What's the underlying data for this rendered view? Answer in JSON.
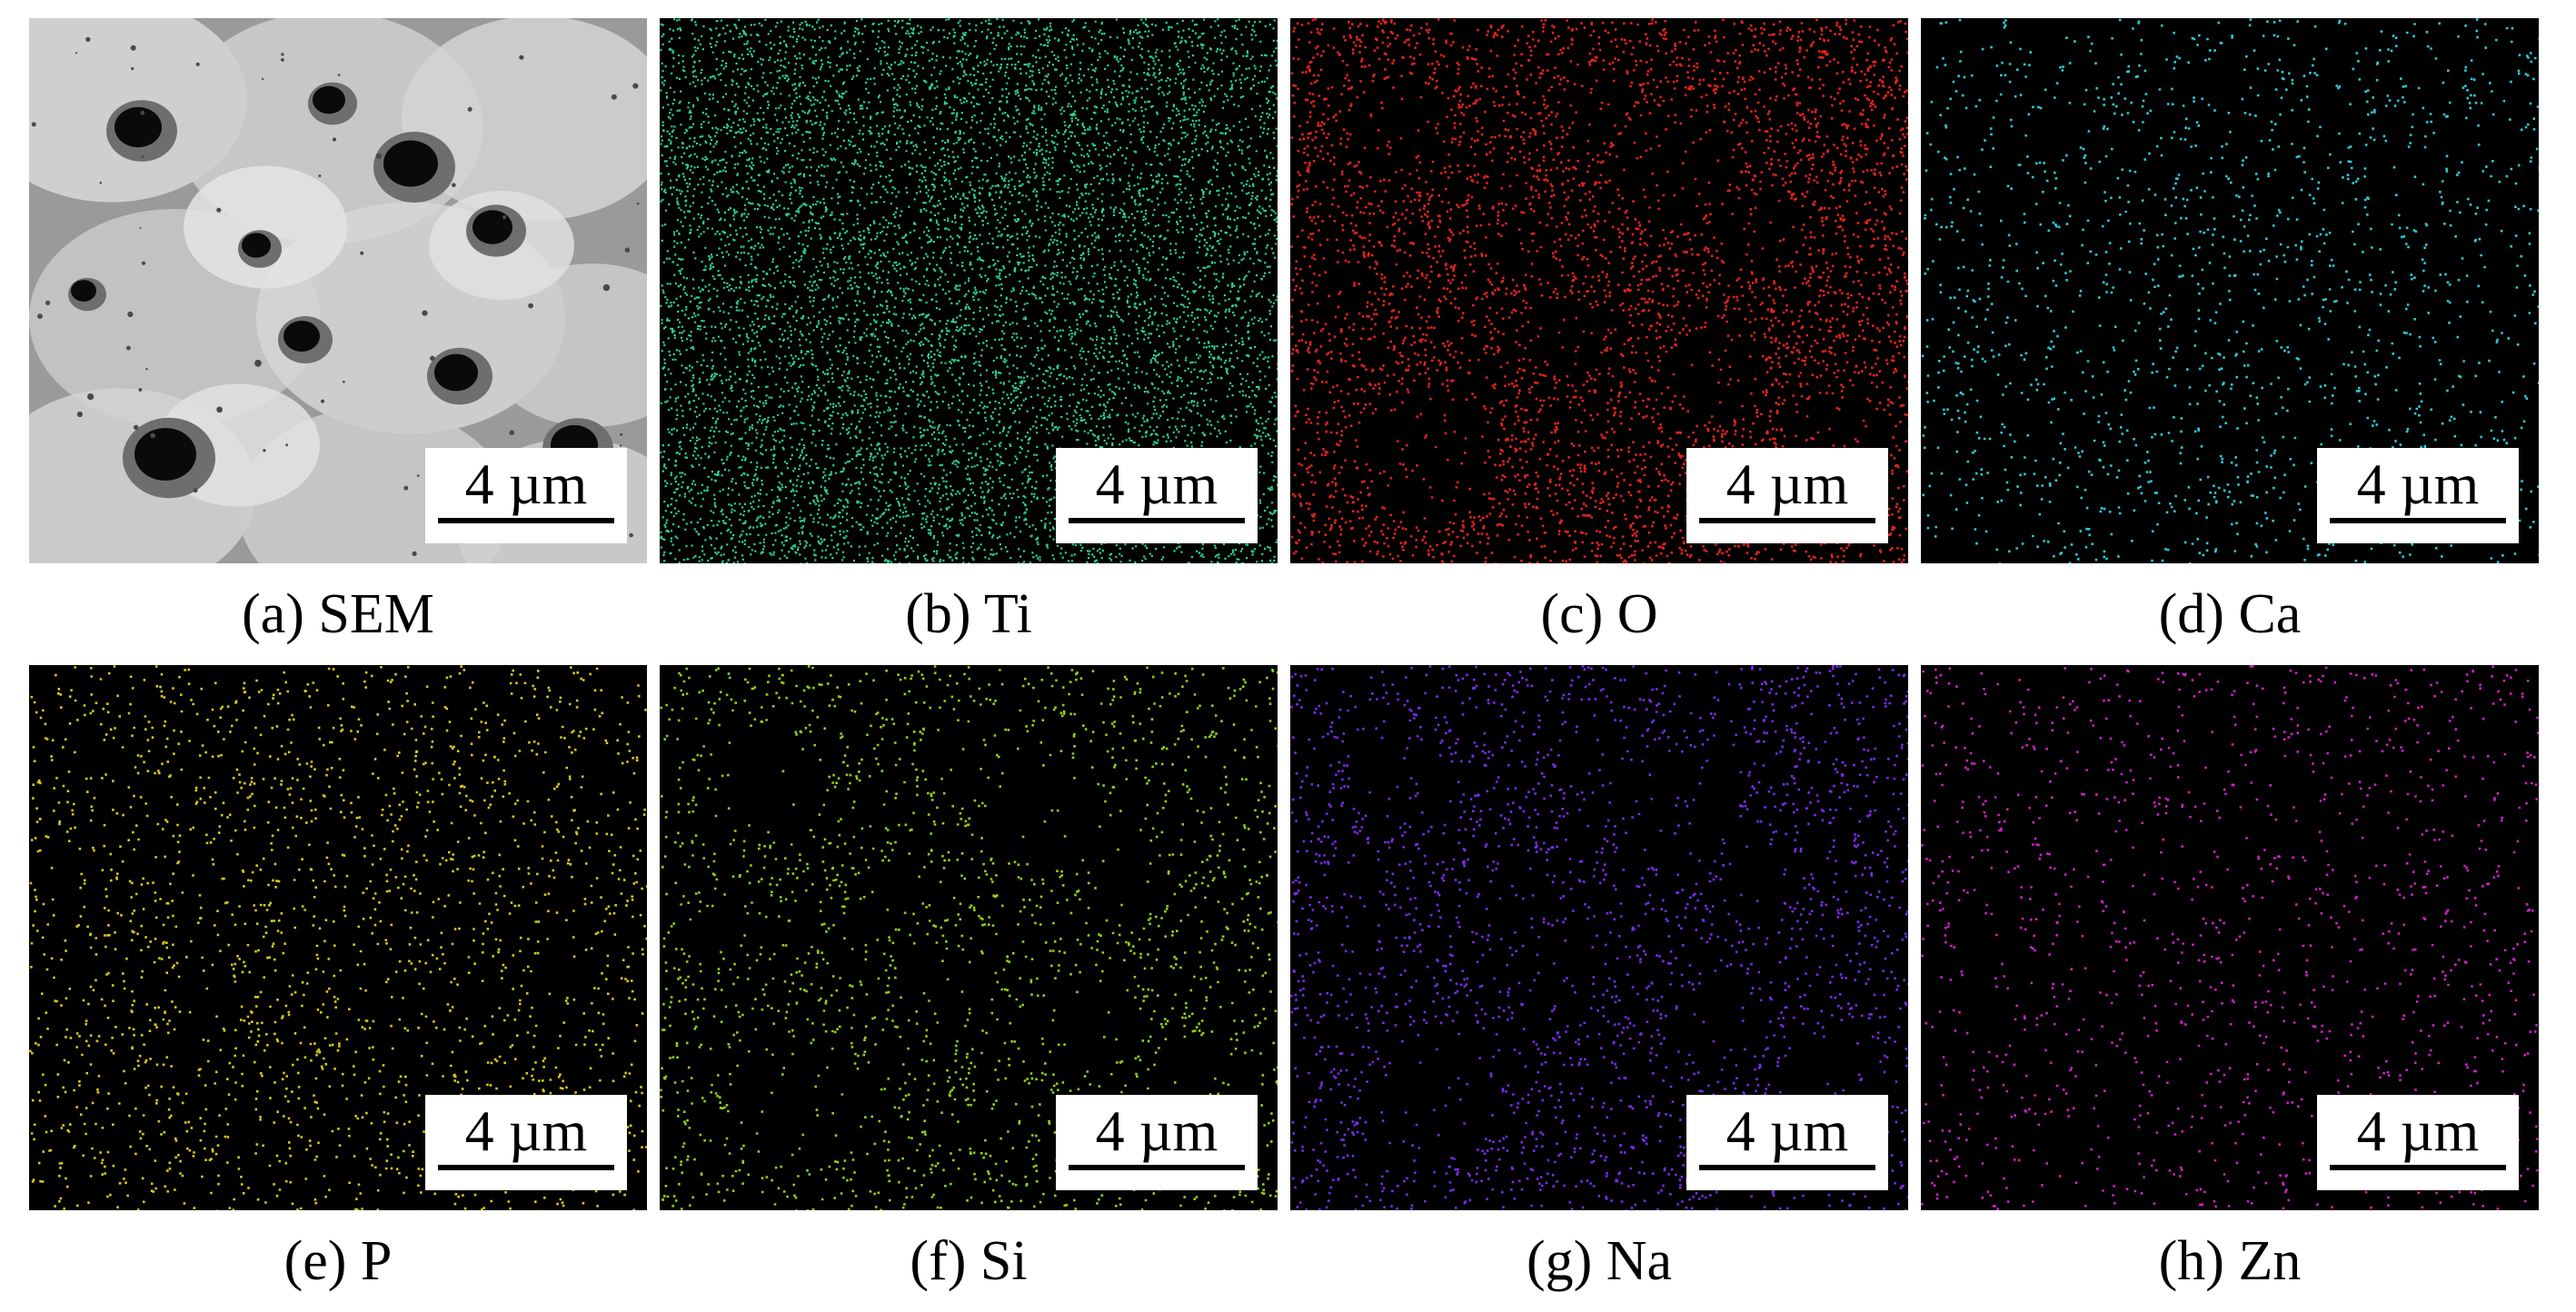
{
  "figure": {
    "scale_bar_label": "4 µm",
    "panels": [
      {
        "id": "a",
        "caption": "(a) SEM",
        "kind": "sem",
        "color": "#bdbdbd"
      },
      {
        "id": "b",
        "caption": "(b) Ti",
        "kind": "map",
        "element": "Ti",
        "color": "#2fd08e",
        "density": 0.95,
        "pores": false
      },
      {
        "id": "c",
        "caption": "(c) O",
        "kind": "map",
        "element": "O",
        "color": "#e0241b",
        "density": 0.6,
        "pores": true
      },
      {
        "id": "d",
        "caption": "(d) Ca",
        "kind": "map",
        "element": "Ca",
        "color": "#2ec9d6",
        "density": 0.18,
        "pores": false
      },
      {
        "id": "e",
        "caption": "(e) P",
        "kind": "map",
        "element": "P",
        "color": "#d8c71e",
        "density": 0.22,
        "pores": false
      },
      {
        "id": "f",
        "caption": "(f) Si",
        "kind": "map",
        "element": "Si",
        "color": "#8fd11a",
        "density": 0.25,
        "pores": true
      },
      {
        "id": "g",
        "caption": "(g) Na",
        "kind": "map",
        "element": "Na",
        "color": "#7a2cf0",
        "density": 0.3,
        "pores": true
      },
      {
        "id": "h",
        "caption": "(h) Zn",
        "kind": "map",
        "element": "Zn",
        "color": "#d021c8",
        "density": 0.14,
        "pores": false
      }
    ]
  }
}
